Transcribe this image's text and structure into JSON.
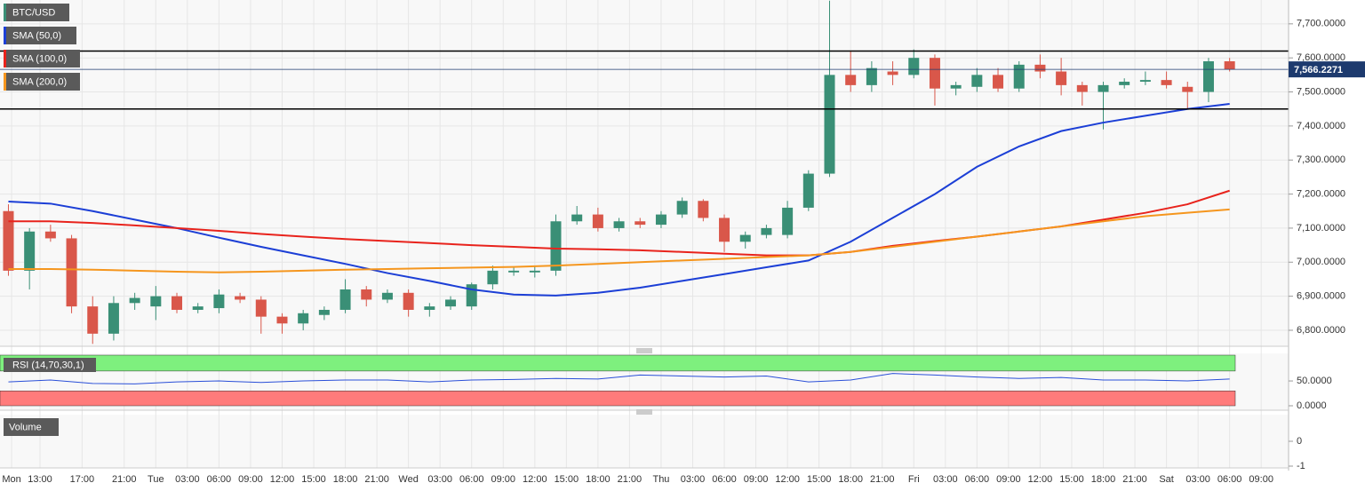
{
  "chart_data": [
    {
      "type": "candlestick",
      "name": "BTC/USD",
      "up_color": "#3a8f76",
      "down_color": "#d9574a",
      "x": [
        10,
        12,
        14,
        16,
        18,
        20,
        22,
        24,
        26,
        28,
        30,
        32,
        34,
        36,
        38,
        40,
        42,
        44,
        46,
        48,
        50,
        52,
        54,
        56,
        58,
        60,
        62,
        64,
        66,
        68,
        70,
        72,
        74,
        76,
        78,
        80,
        82,
        84,
        86,
        88,
        90,
        92,
        94,
        96,
        98,
        100,
        102,
        104,
        106,
        108,
        110,
        112,
        114,
        116,
        118,
        120,
        122,
        124,
        126
      ],
      "open": [
        7150,
        6975,
        7090,
        7070,
        6870,
        6790,
        6880,
        6870,
        6900,
        6860,
        6865,
        6900,
        6890,
        6840,
        6820,
        6845,
        6860,
        6920,
        6890,
        6910,
        6860,
        6870,
        6870,
        6935,
        6970,
        6970,
        6975,
        7120,
        7140,
        7100,
        7120,
        7110,
        7140,
        7180,
        7130,
        7060,
        7080,
        7080,
        7160,
        7260,
        7550,
        7520,
        7560,
        7550,
        7600,
        7510,
        7515,
        7550,
        7510,
        7580,
        7560,
        7520,
        7500,
        7520,
        7530,
        7535,
        7515,
        7500,
        7590
      ],
      "high": [
        7170,
        7100,
        7110,
        7080,
        6900,
        6900,
        6910,
        6930,
        6910,
        6880,
        6920,
        6910,
        6900,
        6850,
        6860,
        6870,
        6950,
        6930,
        6920,
        6920,
        6880,
        6900,
        6940,
        6990,
        6985,
        6990,
        7140,
        7165,
        7160,
        7130,
        7130,
        7150,
        7190,
        7185,
        7140,
        7090,
        7110,
        7180,
        7270,
        7768,
        7620,
        7590,
        7590,
        7625,
        7610,
        7530,
        7570,
        7570,
        7590,
        7610,
        7600,
        7530,
        7530,
        7540,
        7560,
        7560,
        7530,
        7600,
        7600
      ],
      "low": [
        6960,
        6920,
        7060,
        6850,
        6760,
        6770,
        6860,
        6830,
        6850,
        6850,
        6850,
        6880,
        6790,
        6790,
        6800,
        6830,
        6850,
        6870,
        6880,
        6840,
        6840,
        6860,
        6860,
        6920,
        6960,
        6955,
        6960,
        7110,
        7090,
        7090,
        7100,
        7100,
        7130,
        7120,
        7030,
        7040,
        7070,
        7070,
        7150,
        7250,
        7500,
        7500,
        7520,
        7540,
        7460,
        7490,
        7500,
        7500,
        7500,
        7540,
        7490,
        7460,
        7390,
        7510,
        7520,
        7510,
        7450,
        7470,
        7560
      ],
      "close": [
        6975,
        7090,
        7070,
        6870,
        6790,
        6880,
        6895,
        6900,
        6860,
        6870,
        6905,
        6890,
        6840,
        6820,
        6850,
        6860,
        6920,
        6890,
        6910,
        6860,
        6870,
        6890,
        6935,
        6975,
        6975,
        6975,
        7120,
        7140,
        7100,
        7120,
        7110,
        7140,
        7180,
        7130,
        7060,
        7080,
        7100,
        7160,
        7260,
        7550,
        7520,
        7570,
        7550,
        7600,
        7510,
        7520,
        7550,
        7510,
        7580,
        7560,
        7520,
        7500,
        7520,
        7530,
        7535,
        7520,
        7500,
        7590,
        7566.2271
      ],
      "series": [
        {
          "name": "SMA (50,0)",
          "color": "#1c3fd6",
          "x": [
            10,
            14,
            18,
            22,
            26,
            30,
            34,
            38,
            42,
            46,
            50,
            54,
            58,
            62,
            66,
            70,
            74,
            78,
            82,
            86,
            90,
            94,
            98,
            102,
            106,
            110,
            114,
            118,
            122,
            126
          ],
          "values": [
            7178,
            7172,
            7150,
            7125,
            7100,
            7072,
            7045,
            7020,
            6995,
            6968,
            6945,
            6920,
            6905,
            6902,
            6910,
            6925,
            6945,
            6965,
            6985,
            7005,
            7060,
            7130,
            7200,
            7280,
            7340,
            7385,
            7410,
            7430,
            7450,
            7465
          ]
        },
        {
          "name": "SMA (100,0)",
          "color": "#e8231c",
          "x": [
            10,
            14,
            18,
            22,
            26,
            30,
            34,
            38,
            42,
            46,
            50,
            54,
            58,
            62,
            66,
            70,
            74,
            78,
            82,
            86,
            90,
            94,
            98,
            102,
            106,
            110,
            114,
            118,
            122,
            126
          ],
          "values": [
            7120,
            7120,
            7115,
            7108,
            7100,
            7092,
            7083,
            7075,
            7068,
            7062,
            7056,
            7050,
            7045,
            7040,
            7038,
            7035,
            7030,
            7025,
            7020,
            7020,
            7030,
            7048,
            7062,
            7075,
            7090,
            7105,
            7125,
            7145,
            7170,
            7210
          ]
        },
        {
          "name": "SMA (200,0)",
          "color": "#f5961e",
          "x": [
            10,
            14,
            18,
            22,
            26,
            30,
            34,
            38,
            42,
            46,
            50,
            54,
            58,
            62,
            66,
            70,
            74,
            78,
            82,
            86,
            90,
            94,
            98,
            102,
            106,
            110,
            114,
            118,
            122,
            126
          ],
          "values": [
            6980,
            6980,
            6978,
            6975,
            6972,
            6970,
            6972,
            6975,
            6978,
            6980,
            6982,
            6984,
            6986,
            6990,
            6995,
            7000,
            7005,
            7010,
            7015,
            7020,
            7030,
            7045,
            7060,
            7075,
            7090,
            7105,
            7120,
            7135,
            7145,
            7155
          ]
        }
      ],
      "levels": [
        7620,
        7450
      ],
      "last_price": {
        "value": 7566.2271,
        "label": "7,566.2271"
      },
      "xlim": [
        9.2,
        131.6
      ],
      "ylim": [
        6753,
        7770
      ],
      "grid": true,
      "yticks": [
        {
          "value": 6800,
          "label": "6,800.0000"
        },
        {
          "value": 6900,
          "label": "6,900.0000"
        },
        {
          "value": 7000,
          "label": "7,000.0000"
        },
        {
          "value": 7100,
          "label": "7,100.0000"
        },
        {
          "value": 7200,
          "label": "7,200.0000"
        },
        {
          "value": 7300,
          "label": "7,300.0000"
        },
        {
          "value": 7400,
          "label": "7,400.0000"
        },
        {
          "value": 7500,
          "label": "7,500.0000"
        },
        {
          "value": 7600,
          "label": "7,600.0000"
        },
        {
          "value": 7700,
          "label": "7,700.0000"
        }
      ],
      "xticks": [
        {
          "value": 10.3,
          "label": "Mon"
        },
        {
          "value": 13,
          "label": "13:00"
        },
        {
          "value": 17,
          "label": "17:00"
        },
        {
          "value": 21,
          "label": "21:00"
        },
        {
          "value": 24,
          "label": "Tue"
        },
        {
          "value": 27,
          "label": "03:00"
        },
        {
          "value": 30,
          "label": "06:00"
        },
        {
          "value": 33,
          "label": "09:00"
        },
        {
          "value": 36,
          "label": "12:00"
        },
        {
          "value": 39,
          "label": "15:00"
        },
        {
          "value": 42,
          "label": "18:00"
        },
        {
          "value": 45,
          "label": "21:00"
        },
        {
          "value": 48,
          "label": "Wed"
        },
        {
          "value": 51,
          "label": "03:00"
        },
        {
          "value": 54,
          "label": "06:00"
        },
        {
          "value": 57,
          "label": "09:00"
        },
        {
          "value": 60,
          "label": "12:00"
        },
        {
          "value": 63,
          "label": "15:00"
        },
        {
          "value": 66,
          "label": "18:00"
        },
        {
          "value": 69,
          "label": "21:00"
        },
        {
          "value": 72,
          "label": "Thu"
        },
        {
          "value": 75,
          "label": "03:00"
        },
        {
          "value": 78,
          "label": "06:00"
        },
        {
          "value": 81,
          "label": "09:00"
        },
        {
          "value": 84,
          "label": "12:00"
        },
        {
          "value": 87,
          "label": "15:00"
        },
        {
          "value": 90,
          "label": "18:00"
        },
        {
          "value": 93,
          "label": "21:00"
        },
        {
          "value": 96,
          "label": "Fri"
        },
        {
          "value": 99,
          "label": "03:00"
        },
        {
          "value": 102,
          "label": "06:00"
        },
        {
          "value": 105,
          "label": "09:00"
        },
        {
          "value": 108,
          "label": "12:00"
        },
        {
          "value": 111,
          "label": "15:00"
        },
        {
          "value": 114,
          "label": "18:00"
        },
        {
          "value": 117,
          "label": "21:00"
        },
        {
          "value": 120,
          "label": "Sat"
        },
        {
          "value": 123,
          "label": "03:00"
        },
        {
          "value": 126,
          "label": "06:00"
        },
        {
          "value": 129,
          "label": "09:00"
        }
      ]
    },
    {
      "type": "line",
      "title": "RSI (14,70,30,1)",
      "color": "#2a4fd8",
      "band_colors": [
        "#7ef07e",
        "#ff7b7b"
      ],
      "overbought": 70,
      "oversold": 30,
      "x": [
        10,
        14,
        18,
        22,
        26,
        30,
        34,
        38,
        42,
        46,
        50,
        54,
        58,
        62,
        66,
        70,
        74,
        78,
        82,
        86,
        90,
        94,
        98,
        102,
        106,
        110,
        114,
        118,
        122,
        126
      ],
      "values": [
        48,
        52,
        45,
        44,
        48,
        50,
        47,
        50,
        52,
        52,
        48,
        52,
        53,
        55,
        54,
        62,
        60,
        58,
        60,
        48,
        52,
        65,
        62,
        58,
        55,
        57,
        52,
        52,
        50,
        54
      ],
      "ylim": [
        0,
        102
      ],
      "yticks": [
        {
          "value": 50,
          "label": "50.0000"
        },
        {
          "value": 0,
          "label": "0.0000"
        }
      ]
    },
    {
      "type": "volume",
      "title": "Volume",
      "ylim": [
        -1,
        1
      ],
      "yticks": [
        0,
        -1
      ]
    }
  ]
}
